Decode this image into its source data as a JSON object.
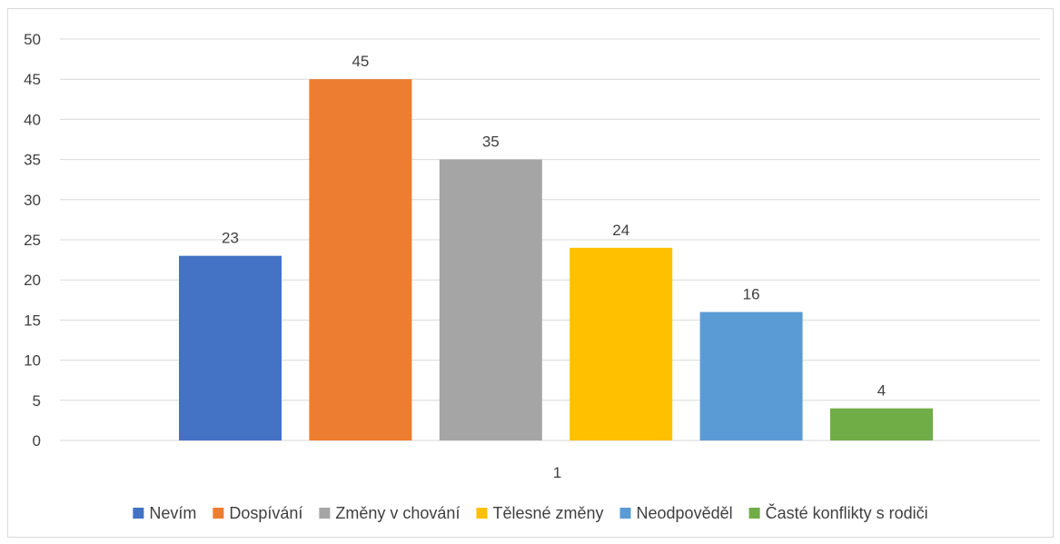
{
  "chart_data": {
    "type": "bar",
    "title": "",
    "xlabel": "",
    "ylabel": "",
    "categories": [
      "1"
    ],
    "series": [
      {
        "name": "Nevím",
        "values": [
          23
        ],
        "color": "#4472c4"
      },
      {
        "name": "Dospívání",
        "values": [
          45
        ],
        "color": "#ed7d31"
      },
      {
        "name": "Změny v chování",
        "values": [
          35
        ],
        "color": "#a5a5a5"
      },
      {
        "name": "Tělesné změny",
        "values": [
          24
        ],
        "color": "#ffc000"
      },
      {
        "name": "Neodpověděl",
        "values": [
          16
        ],
        "color": "#5b9bd5"
      },
      {
        "name": "Časté konflikty s rodiči",
        "values": [
          4
        ],
        "color": "#70ad47"
      }
    ],
    "ylim": [
      0,
      50
    ],
    "yticks": [
      0,
      5,
      10,
      15,
      20,
      25,
      30,
      35,
      40,
      45,
      50
    ],
    "grid": true,
    "data_labels": true,
    "legend_position": "bottom"
  }
}
